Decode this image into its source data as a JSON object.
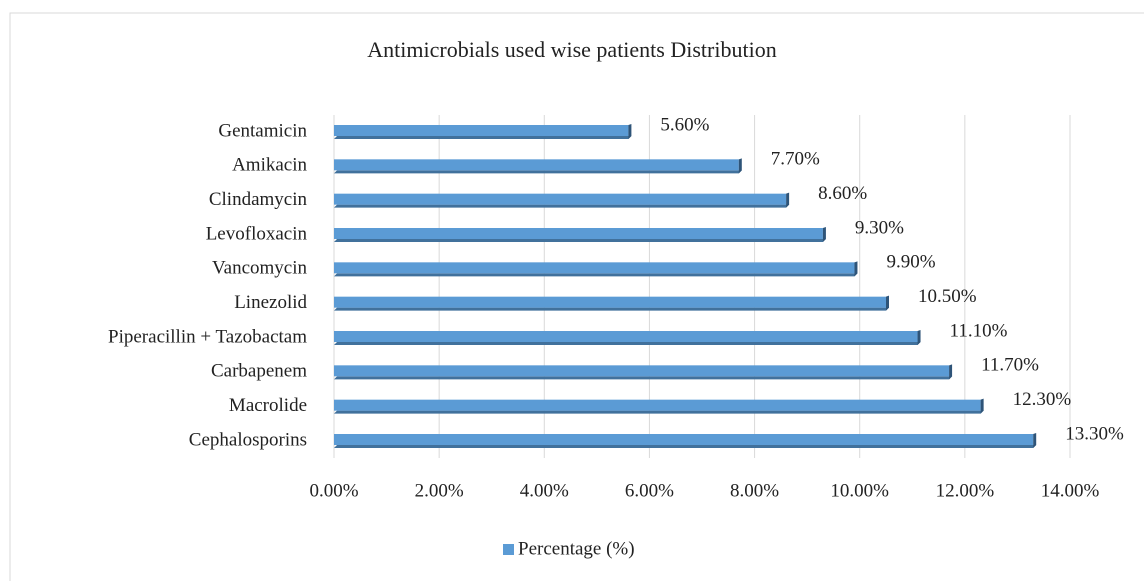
{
  "chart_data": {
    "type": "bar",
    "orientation": "horizontal",
    "title": "Antimicrobials used wise patients Distribution",
    "categories": [
      "Gentamicin",
      "Amikacin",
      "Clindamycin",
      "Levofloxacin",
      "Vancomycin",
      "Linezolid",
      "Piperacillin + Tazobactam",
      "Carbapenem",
      "Macrolide",
      "Cephalosporins"
    ],
    "series": [
      {
        "name": "Percentage (%)",
        "color": "#5b9bd5",
        "values": [
          5.6,
          7.7,
          8.6,
          9.3,
          9.9,
          10.5,
          11.1,
          11.7,
          12.3,
          13.3
        ],
        "value_labels": [
          "5.60%",
          "7.70%",
          "8.60%",
          "9.30%",
          "9.90%",
          "10.50%",
          "11.10%",
          "11.70%",
          "12.30%",
          "13.30%"
        ]
      }
    ],
    "xlim": [
      0,
      14
    ],
    "xticks": [
      {
        "value": 0,
        "label": "0.00%"
      },
      {
        "value": 2,
        "label": "2.00%"
      },
      {
        "value": 4,
        "label": "4.00%"
      },
      {
        "value": 6,
        "label": "6.00%"
      },
      {
        "value": 8,
        "label": "8.00%"
      },
      {
        "value": 10,
        "label": "10.00%"
      },
      {
        "value": 12,
        "label": "12.00%"
      },
      {
        "value": 14,
        "label": "14.00%"
      }
    ],
    "grid": true,
    "legend": "bottom"
  }
}
